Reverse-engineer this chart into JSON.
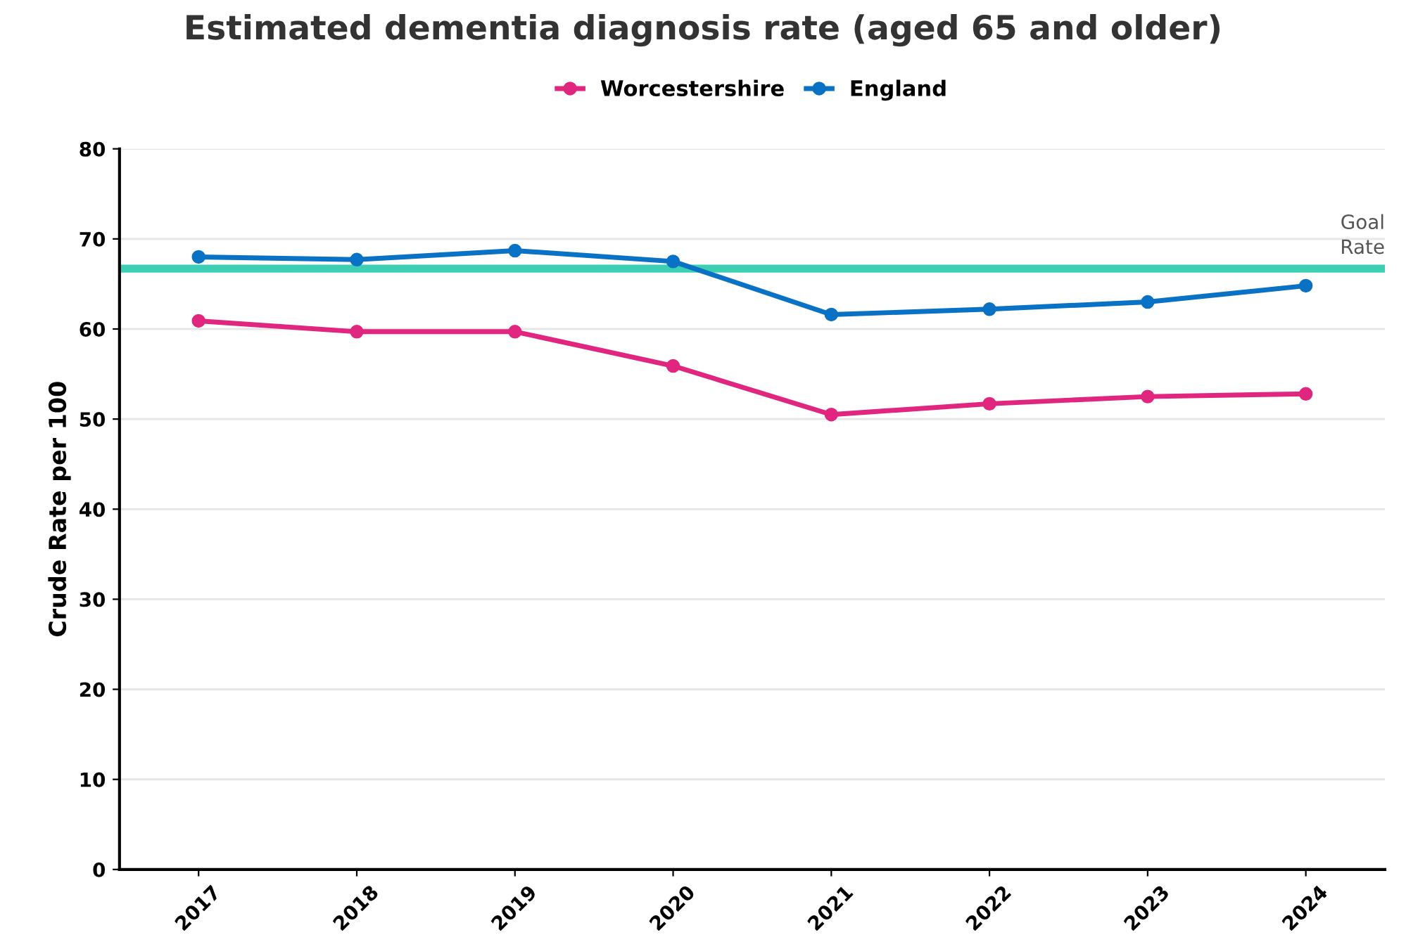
{
  "chart_data": {
    "type": "line",
    "title": "Estimated dementia diagnosis rate (aged 65 and older)",
    "ylabel": "Crude Rate per 100",
    "categories": [
      "2017",
      "2018",
      "2019",
      "2020",
      "2021",
      "2022",
      "2023",
      "2024"
    ],
    "series": [
      {
        "name": "Worcestershire",
        "color": "#e0267e",
        "values": [
          60.9,
          59.7,
          59.7,
          55.9,
          50.5,
          51.7,
          52.5,
          52.8
        ]
      },
      {
        "name": "England",
        "color": "#0a72c4",
        "values": [
          68.0,
          67.7,
          68.7,
          67.5,
          61.6,
          62.2,
          63.0,
          64.8
        ]
      }
    ],
    "ylim": [
      0,
      80
    ],
    "yticks": [
      0,
      10,
      20,
      30,
      40,
      50,
      60,
      70,
      80
    ],
    "grid": "y",
    "legend": "top",
    "marker": "circle",
    "line_style": "solid",
    "ref_lines": [
      {
        "axis": "y",
        "value": 66.7,
        "label": "Goal\nRate",
        "color": "#3ccfb4"
      }
    ]
  }
}
